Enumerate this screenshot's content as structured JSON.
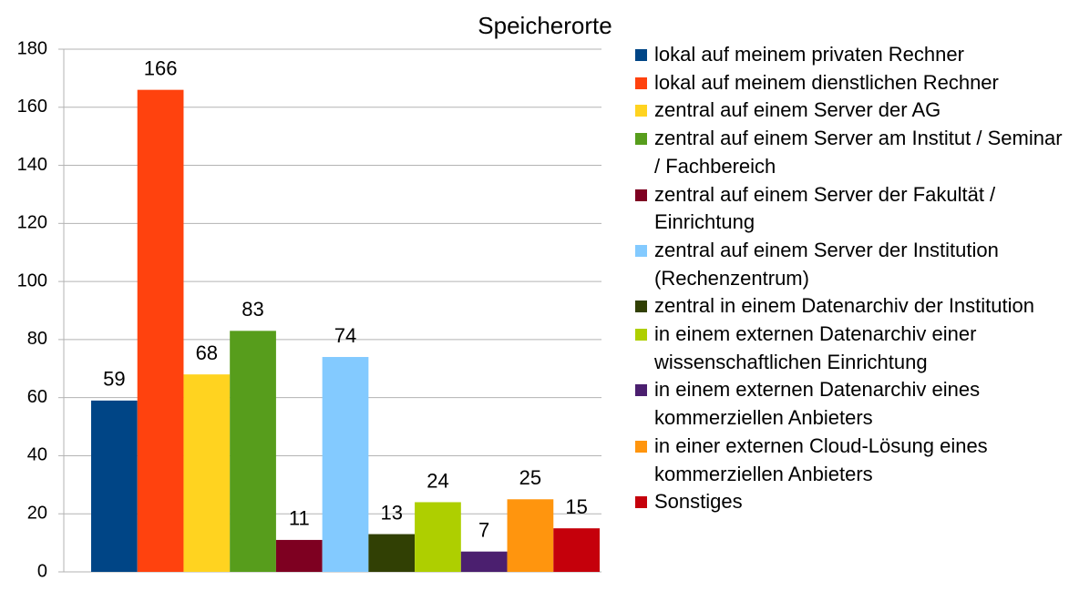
{
  "chart_data": {
    "type": "bar",
    "title": "Speicherorte",
    "categories": [
      null
    ],
    "series": [
      {
        "name": "lokal auf meinem privaten Rechner",
        "color": "#004586",
        "values": [
          59
        ]
      },
      {
        "name": "lokal auf meinem dienstlichen Rechner",
        "color": "#ff420e",
        "values": [
          166
        ]
      },
      {
        "name": "zentral auf einem Server der AG",
        "color": "#ffd320",
        "values": [
          68
        ]
      },
      {
        "name": "zentral auf einem Server am Institut / Seminar / Fachbereich",
        "color": "#579d1c",
        "values": [
          83
        ]
      },
      {
        "name": "zentral auf einem Server der Fakultät / Einrichtung",
        "color": "#7e0021",
        "values": [
          11
        ]
      },
      {
        "name": "zentral auf einem Server der Institution (Rechenzentrum)",
        "color": "#83caff",
        "values": [
          74
        ]
      },
      {
        "name": "zentral in einem Datenarchiv der Institution",
        "color": "#314004",
        "values": [
          13
        ]
      },
      {
        "name": "in einem externen Datenarchiv einer wissenschaftlichen Einrichtung",
        "color": "#aecf00",
        "values": [
          24
        ]
      },
      {
        "name": "in einem externen Datenarchiv eines kommerziellen Anbieters",
        "color": "#4b1f6f",
        "values": [
          7
        ]
      },
      {
        "name": "in einer externen Cloud-Lösung eines kommerziellen Anbieters",
        "color": "#ff950e",
        "values": [
          25
        ]
      },
      {
        "name": "Sonstiges",
        "color": "#c5000b",
        "values": [
          15
        ]
      }
    ],
    "ylim": [
      0,
      180
    ],
    "yticks": [
      0,
      20,
      40,
      60,
      80,
      100,
      120,
      140,
      160,
      180
    ],
    "grid": true,
    "data_labels": true,
    "legend": "right"
  }
}
